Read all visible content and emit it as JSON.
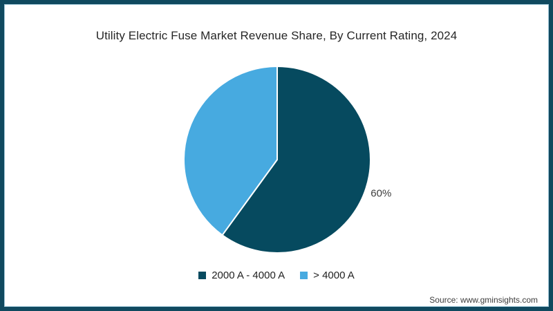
{
  "frame": {
    "outer_color": "#10495f",
    "inner_line_color": "#9dc6d8"
  },
  "chart_data": {
    "type": "pie",
    "title": "Utility Electric Fuse Market Revenue Share, By Current Rating, 2024",
    "categories": [
      "2000 A - 4000 A",
      "> 4000 A"
    ],
    "values": [
      60,
      40
    ],
    "colors": [
      "#064a5f",
      "#47aae0"
    ],
    "data_labels": [
      "60%",
      ""
    ],
    "data_label_color": "#3d3d3d",
    "slice_border_color": "#ffffff",
    "start_angle_deg": 0,
    "direction": "clockwise",
    "legend_position": "bottom",
    "background": "#ffffff"
  },
  "footer": {
    "source": "Source: www.gminsights.com"
  }
}
